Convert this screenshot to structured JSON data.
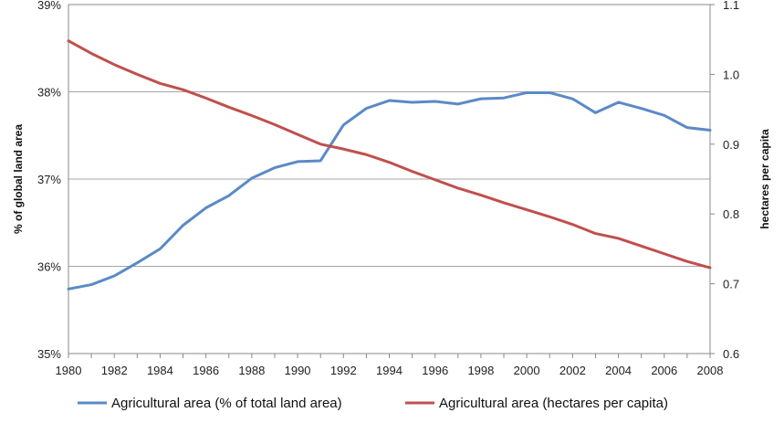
{
  "chart_data": {
    "type": "line",
    "title": "",
    "xlabel": "",
    "ylabel_left": "% of global land area",
    "ylabel_right": "hectares per capita",
    "x": [
      1980,
      1981,
      1982,
      1983,
      1984,
      1985,
      1986,
      1987,
      1988,
      1989,
      1990,
      1991,
      1992,
      1993,
      1994,
      1995,
      1996,
      1997,
      1998,
      1999,
      2000,
      2001,
      2002,
      2003,
      2004,
      2005,
      2006,
      2007,
      2008
    ],
    "x_ticks": [
      "1980",
      "1982",
      "1984",
      "1986",
      "1988",
      "1990",
      "1992",
      "1994",
      "1996",
      "1998",
      "2000",
      "2002",
      "2004",
      "2006",
      "2008"
    ],
    "y_left_ticks": [
      "35%",
      "36%",
      "37%",
      "38%",
      "39%"
    ],
    "y_right_ticks": [
      "0.6",
      "0.7",
      "0.8",
      "0.9",
      "1.0",
      "1.1"
    ],
    "ylim_left": [
      35,
      39
    ],
    "ylim_right": [
      0.6,
      1.1
    ],
    "grid": true,
    "legend_position": "bottom",
    "series": [
      {
        "name": "Agricultural area (% of total land area)",
        "axis": "left",
        "color": "#5b8ac6",
        "values": [
          35.74,
          35.79,
          35.89,
          36.04,
          36.2,
          36.47,
          36.67,
          36.81,
          37.01,
          37.13,
          37.2,
          37.21,
          37.62,
          37.81,
          37.9,
          37.88,
          37.89,
          37.86,
          37.92,
          37.93,
          37.99,
          37.99,
          37.92,
          37.76,
          37.88,
          37.81,
          37.73,
          37.59,
          37.56
        ]
      },
      {
        "name": "Agricultural area (hectares per capita)",
        "axis": "right",
        "color": "#c0504d",
        "values": [
          1.048,
          1.03,
          1.014,
          1.0,
          0.987,
          0.978,
          0.966,
          0.953,
          0.941,
          0.928,
          0.914,
          0.9,
          0.893,
          0.885,
          0.874,
          0.861,
          0.849,
          0.837,
          0.827,
          0.816,
          0.806,
          0.796,
          0.785,
          0.772,
          0.765,
          0.754,
          0.743,
          0.732,
          0.723
        ]
      }
    ]
  }
}
